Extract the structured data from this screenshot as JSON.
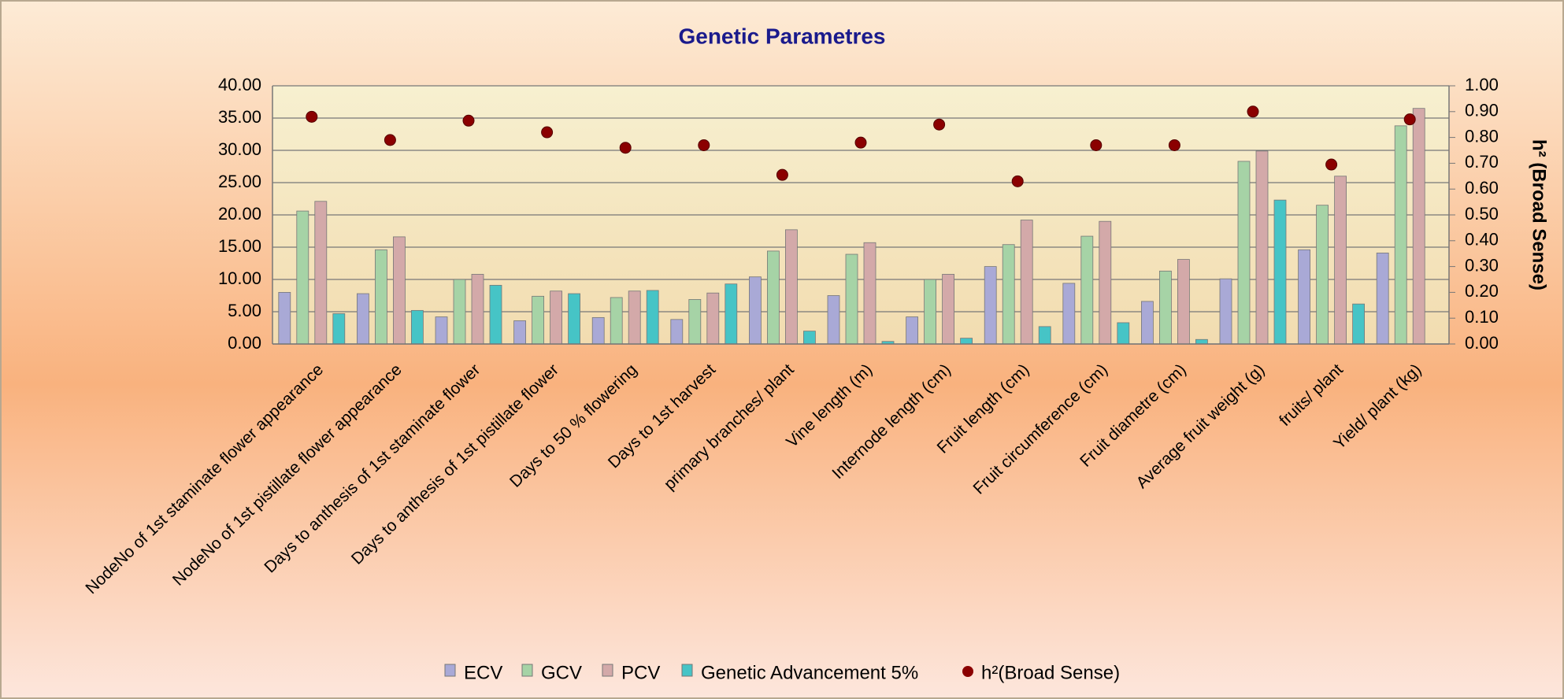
{
  "chart_data": {
    "type": "bar",
    "title": "Genetic Parametres",
    "categories": [
      "NodeNo of 1st staminate flower appearance",
      "NodeNo of 1st pistillate flower appearance",
      "Days to anthesis of 1st staminate flower",
      "Days to anthesis of 1st pistillate flower",
      "Days to 50 % flowering",
      "Days to 1st harvest",
      "primary branches/ plant",
      "Vine length (m)",
      "Internode length (cm)",
      "Fruit length (cm)",
      "Fruit circumference (cm)",
      "Fruit diametre (cm)",
      "Average fruit weight (g)",
      "fruits/ plant",
      "Yield/ plant (kg)"
    ],
    "series": [
      {
        "name": "ECV",
        "color": "#a9a9d6",
        "values": [
          8.0,
          7.8,
          4.2,
          3.6,
          4.1,
          3.8,
          10.4,
          7.5,
          4.2,
          12.0,
          9.4,
          6.6,
          10.1,
          14.6,
          14.1
        ]
      },
      {
        "name": "GCV",
        "color": "#a6d3a6",
        "values": [
          20.6,
          14.6,
          10.0,
          7.4,
          7.2,
          6.9,
          14.4,
          13.9,
          10.0,
          15.4,
          16.7,
          11.3,
          28.3,
          21.5,
          33.8
        ]
      },
      {
        "name": "PCV",
        "color": "#d3a9a9",
        "values": [
          22.1,
          16.6,
          10.8,
          8.2,
          8.2,
          7.9,
          17.7,
          15.7,
          10.8,
          19.2,
          19.0,
          13.1,
          29.9,
          26.0,
          36.5
        ]
      },
      {
        "name": "Genetic Advancement 5%",
        "color": "#46c4c6",
        "values": [
          4.7,
          5.2,
          9.1,
          7.8,
          8.3,
          9.3,
          2.0,
          0.4,
          0.9,
          2.7,
          3.3,
          0.7,
          22.3,
          6.2,
          null
        ]
      },
      {
        "name": "h²(Broad Sense)",
        "color": "#8b0000",
        "axis": "y2",
        "values": [
          0.88,
          0.79,
          0.865,
          0.82,
          0.76,
          0.77,
          0.655,
          0.78,
          0.85,
          0.63,
          0.77,
          0.77,
          0.9,
          0.695,
          0.87
        ]
      }
    ],
    "ylim": [
      0,
      40
    ],
    "yticks": [
      {
        "value": 0,
        "label": "0.00"
      },
      {
        "value": 5,
        "label": "5.00"
      },
      {
        "value": 10,
        "label": "10.00"
      },
      {
        "value": 15,
        "label": "15.00"
      },
      {
        "value": 20,
        "label": "20.00"
      },
      {
        "value": 25,
        "label": "25.00"
      },
      {
        "value": 30,
        "label": "30.00"
      },
      {
        "value": 35,
        "label": "35.00"
      },
      {
        "value": 40,
        "label": "40.00"
      }
    ],
    "y2lim": [
      0,
      1
    ],
    "y2ticks": [
      {
        "value": 0,
        "label": "0.00"
      },
      {
        "value": 0.1,
        "label": "0.10"
      },
      {
        "value": 0.2,
        "label": "0.20"
      },
      {
        "value": 0.3,
        "label": "0.30"
      },
      {
        "value": 0.4,
        "label": "0.40"
      },
      {
        "value": 0.5,
        "label": "0.50"
      },
      {
        "value": 0.6,
        "label": "0.60"
      },
      {
        "value": 0.7,
        "label": "0.70"
      },
      {
        "value": 0.8,
        "label": "0.80"
      },
      {
        "value": 0.9,
        "label": "0.90"
      },
      {
        "value": 1,
        "label": "1.00"
      }
    ],
    "y2label": "h² (Broad Sense)",
    "grid": true,
    "legend": "bottom"
  }
}
